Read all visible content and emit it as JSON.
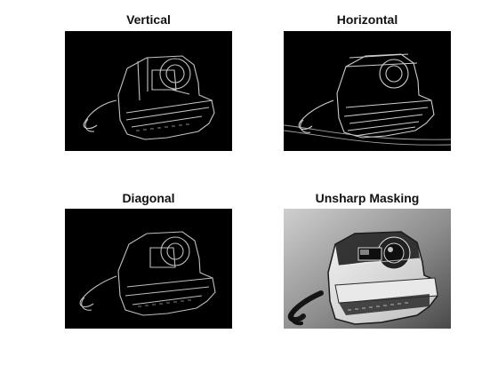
{
  "figure": {
    "background": "#ffffff",
    "panels": [
      {
        "id": "vertical",
        "title": "Vertical",
        "render": "edge-dark"
      },
      {
        "id": "horizontal",
        "title": "Horizontal",
        "render": "edge-dark"
      },
      {
        "id": "diagonal",
        "title": "Diagonal",
        "render": "edge-dark"
      },
      {
        "id": "unsharp",
        "title": "Unsharp Masking",
        "render": "sharpened-photo"
      }
    ]
  },
  "image_subject": "instant-camera-photo"
}
